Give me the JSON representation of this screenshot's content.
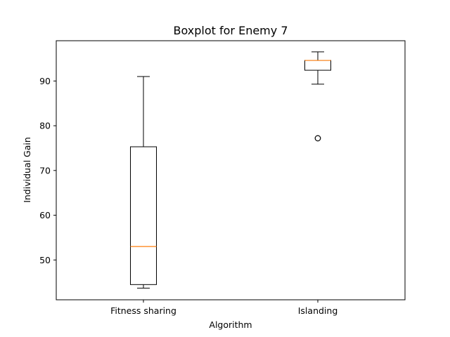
{
  "chart_data": {
    "type": "boxplot",
    "title": "Boxplot for Enemy 7",
    "xlabel": "Algorithm",
    "ylabel": "Individual Gain",
    "categories": [
      "Fitness sharing",
      "Islanding"
    ],
    "ylim": [
      41.1,
      99.0
    ],
    "yticks": [
      50,
      60,
      70,
      80,
      90
    ],
    "grid": false,
    "boxes": [
      {
        "name": "Fitness sharing",
        "whisker_low": 43.7,
        "q1": 44.5,
        "median": 53.0,
        "q3": 75.3,
        "whisker_high": 91.0,
        "outliers": []
      },
      {
        "name": "Islanding",
        "whisker_low": 89.3,
        "q1": 92.4,
        "median": 94.6,
        "q3": 94.6,
        "whisker_high": 96.5,
        "outliers": [
          77.2
        ]
      }
    ],
    "colors": {
      "box": "#000000",
      "median": "#ff7f0e",
      "background": "#ffffff"
    }
  }
}
